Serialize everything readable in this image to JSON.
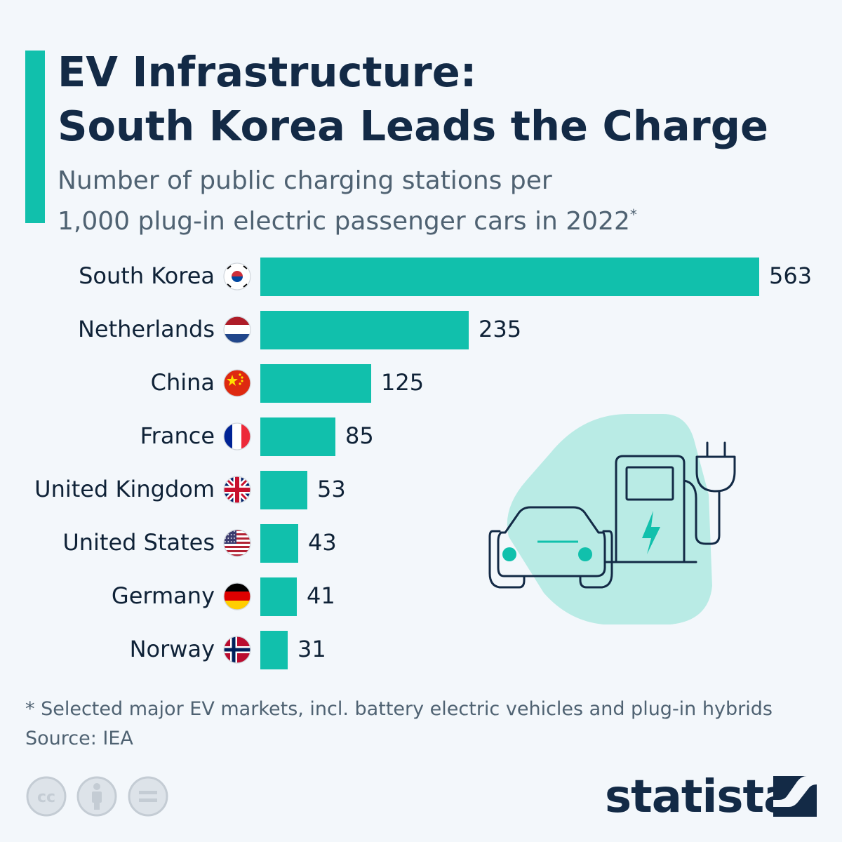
{
  "header": {
    "title_line1": "EV Infrastructure:",
    "title_line2": "South Korea Leads the Charge",
    "subtitle_line1": "Number of public charging stations per",
    "subtitle_line2": "1,000 plug-in electric passenger cars in 2022",
    "subtitle_mark": "*"
  },
  "chart_data": {
    "type": "bar",
    "orientation": "horizontal",
    "title": "EV Infrastructure: South Korea Leads the Charge",
    "subtitle": "Number of public charging stations per 1,000 plug-in electric passenger cars in 2022*",
    "categories": [
      "South Korea",
      "Netherlands",
      "China",
      "France",
      "United Kingdom",
      "United States",
      "Germany",
      "Norway"
    ],
    "values": [
      563,
      235,
      125,
      85,
      53,
      43,
      41,
      31
    ],
    "flags": [
      "south-korea",
      "netherlands",
      "china",
      "france",
      "united-kingdom",
      "united-states",
      "germany",
      "norway"
    ],
    "xlim": [
      0,
      563
    ],
    "bar_color": "#11c0ac",
    "grid": false,
    "data_labels": true
  },
  "footer": {
    "note": "* Selected major EV markets, incl. battery electric vehicles and plug-in hybrids",
    "source": "Source: IEA",
    "brand": "statista",
    "license_icons": [
      "cc-icon",
      "attribution-icon",
      "no-derivatives-icon"
    ]
  },
  "colors": {
    "accent": "#11c0ac",
    "title": "#132a46",
    "text_muted": "#4f6272",
    "background": "#f3f7fb",
    "illustration_bg": "#b9ebe5"
  }
}
